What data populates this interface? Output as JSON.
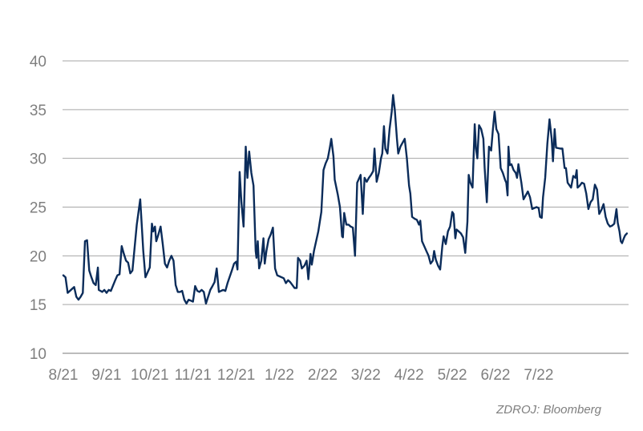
{
  "source": "ZDROJ: Bloomberg",
  "chart_data": {
    "type": "line",
    "title": "",
    "xlabel": "",
    "ylabel": "",
    "ylim": [
      10,
      40
    ],
    "yticks": [
      10,
      15,
      20,
      25,
      30,
      35,
      40
    ],
    "xtick_labels": [
      "8/21",
      "9/21",
      "10/21",
      "11/21",
      "12/21",
      "1/22",
      "2/22",
      "3/22",
      "4/22",
      "5/22",
      "6/22",
      "7/22"
    ],
    "grid": true,
    "legend": "none",
    "line_color": "#0b2c5a",
    "x_unit": "month index (0 = 8/21)",
    "series": [
      {
        "values": [
          [
            0.0,
            18.0
          ],
          [
            0.05,
            17.8
          ],
          [
            0.1,
            16.2
          ],
          [
            0.2,
            16.6
          ],
          [
            0.25,
            16.8
          ],
          [
            0.3,
            15.8
          ],
          [
            0.35,
            15.5
          ],
          [
            0.4,
            15.8
          ],
          [
            0.45,
            16.2
          ],
          [
            0.5,
            21.5
          ],
          [
            0.55,
            21.6
          ],
          [
            0.6,
            18.5
          ],
          [
            0.65,
            17.8
          ],
          [
            0.7,
            17.2
          ],
          [
            0.75,
            17.0
          ],
          [
            0.8,
            18.8
          ],
          [
            0.82,
            16.5
          ],
          [
            0.9,
            16.3
          ],
          [
            0.95,
            16.5
          ],
          [
            1.0,
            16.2
          ],
          [
            1.05,
            16.5
          ],
          [
            1.1,
            16.4
          ],
          [
            1.2,
            17.5
          ],
          [
            1.25,
            18.0
          ],
          [
            1.3,
            18.1
          ],
          [
            1.35,
            21.0
          ],
          [
            1.4,
            20.2
          ],
          [
            1.45,
            19.5
          ],
          [
            1.5,
            19.3
          ],
          [
            1.55,
            18.2
          ],
          [
            1.6,
            18.5
          ],
          [
            1.7,
            23.2
          ],
          [
            1.78,
            25.8
          ],
          [
            1.85,
            20.5
          ],
          [
            1.9,
            17.8
          ],
          [
            2.0,
            18.8
          ],
          [
            2.05,
            23.3
          ],
          [
            2.08,
            22.5
          ],
          [
            2.12,
            23.0
          ],
          [
            2.15,
            21.5
          ],
          [
            2.2,
            22.2
          ],
          [
            2.25,
            23.0
          ],
          [
            2.3,
            21.2
          ],
          [
            2.35,
            19.2
          ],
          [
            2.4,
            18.8
          ],
          [
            2.45,
            19.5
          ],
          [
            2.5,
            20.0
          ],
          [
            2.55,
            19.5
          ],
          [
            2.6,
            17.0
          ],
          [
            2.65,
            16.3
          ],
          [
            2.7,
            16.3
          ],
          [
            2.75,
            16.4
          ],
          [
            2.8,
            15.5
          ],
          [
            2.85,
            15.1
          ],
          [
            2.9,
            15.5
          ],
          [
            2.95,
            15.4
          ],
          [
            3.0,
            15.3
          ],
          [
            3.05,
            16.9
          ],
          [
            3.1,
            16.4
          ],
          [
            3.15,
            16.3
          ],
          [
            3.2,
            16.5
          ],
          [
            3.25,
            16.3
          ],
          [
            3.3,
            15.1
          ],
          [
            3.35,
            15.8
          ],
          [
            3.4,
            16.5
          ],
          [
            3.45,
            16.9
          ],
          [
            3.5,
            17.3
          ],
          [
            3.55,
            18.7
          ],
          [
            3.6,
            16.3
          ],
          [
            3.65,
            16.4
          ],
          [
            3.7,
            16.5
          ],
          [
            3.75,
            16.4
          ],
          [
            3.8,
            17.2
          ],
          [
            3.9,
            18.5
          ],
          [
            3.95,
            19.2
          ],
          [
            4.0,
            19.4
          ],
          [
            4.03,
            18.6
          ],
          [
            4.08,
            28.6
          ],
          [
            4.12,
            25.5
          ],
          [
            4.17,
            23.0
          ],
          [
            4.22,
            31.2
          ],
          [
            4.26,
            28.0
          ],
          [
            4.3,
            30.7
          ],
          [
            4.35,
            28.5
          ],
          [
            4.4,
            27.2
          ],
          [
            4.45,
            20.5
          ],
          [
            4.47,
            19.8
          ],
          [
            4.5,
            21.5
          ],
          [
            4.53,
            18.7
          ],
          [
            4.58,
            19.5
          ],
          [
            4.63,
            21.8
          ],
          [
            4.66,
            19.2
          ],
          [
            4.7,
            20.5
          ],
          [
            4.75,
            21.7
          ],
          [
            4.8,
            22.2
          ],
          [
            4.85,
            22.9
          ],
          [
            4.9,
            18.7
          ],
          [
            4.95,
            18.0
          ],
          [
            5.0,
            17.9
          ],
          [
            5.1,
            17.7
          ],
          [
            5.15,
            17.2
          ],
          [
            5.2,
            17.5
          ],
          [
            5.25,
            17.3
          ],
          [
            5.3,
            17.0
          ],
          [
            5.35,
            16.7
          ],
          [
            5.4,
            16.7
          ],
          [
            5.43,
            19.8
          ],
          [
            5.48,
            19.5
          ],
          [
            5.52,
            18.7
          ],
          [
            5.58,
            19.0
          ],
          [
            5.63,
            19.5
          ],
          [
            5.67,
            17.6
          ],
          [
            5.72,
            20.2
          ],
          [
            5.75,
            19.1
          ],
          [
            5.8,
            20.5
          ],
          [
            5.9,
            22.5
          ],
          [
            5.97,
            24.5
          ],
          [
            6.02,
            28.8
          ],
          [
            6.07,
            29.5
          ],
          [
            6.12,
            30.0
          ],
          [
            6.17,
            31.2
          ],
          [
            6.2,
            32.0
          ],
          [
            6.25,
            30.2
          ],
          [
            6.28,
            27.8
          ],
          [
            6.35,
            26.3
          ],
          [
            6.4,
            25.0
          ],
          [
            6.45,
            22.0
          ],
          [
            6.47,
            21.9
          ],
          [
            6.5,
            24.4
          ],
          [
            6.55,
            23.2
          ],
          [
            6.6,
            23.2
          ],
          [
            6.65,
            23.0
          ],
          [
            6.7,
            22.9
          ],
          [
            6.75,
            20.0
          ],
          [
            6.8,
            27.5
          ],
          [
            6.88,
            28.3
          ],
          [
            6.93,
            24.3
          ],
          [
            6.97,
            28.0
          ],
          [
            7.02,
            27.6
          ],
          [
            7.07,
            28.0
          ],
          [
            7.12,
            28.3
          ],
          [
            7.17,
            28.7
          ],
          [
            7.2,
            31.0
          ],
          [
            7.25,
            27.6
          ],
          [
            7.3,
            28.5
          ],
          [
            7.35,
            30.0
          ],
          [
            7.38,
            30.5
          ],
          [
            7.42,
            33.3
          ],
          [
            7.45,
            31.0
          ],
          [
            7.5,
            30.5
          ],
          [
            7.55,
            33.0
          ],
          [
            7.6,
            34.8
          ],
          [
            7.63,
            36.5
          ],
          [
            7.67,
            35.0
          ],
          [
            7.72,
            32.0
          ],
          [
            7.75,
            30.5
          ],
          [
            7.8,
            31.2
          ],
          [
            7.85,
            31.6
          ],
          [
            7.9,
            32.0
          ],
          [
            7.95,
            30.0
          ],
          [
            8.0,
            27.2
          ],
          [
            8.03,
            26.4
          ],
          [
            8.07,
            24.0
          ],
          [
            8.13,
            23.8
          ],
          [
            8.18,
            23.7
          ],
          [
            8.23,
            23.2
          ],
          [
            8.26,
            23.6
          ],
          [
            8.3,
            21.5
          ],
          [
            8.35,
            21.0
          ],
          [
            8.4,
            20.5
          ],
          [
            8.45,
            20.0
          ],
          [
            8.5,
            19.2
          ],
          [
            8.55,
            19.5
          ],
          [
            8.58,
            20.5
          ],
          [
            8.62,
            19.6
          ],
          [
            8.67,
            19.0
          ],
          [
            8.72,
            18.6
          ],
          [
            8.77,
            21.0
          ],
          [
            8.8,
            22.0
          ],
          [
            8.85,
            21.2
          ],
          [
            8.9,
            22.5
          ],
          [
            8.95,
            23.0
          ],
          [
            9.0,
            24.5
          ],
          [
            9.03,
            24.3
          ],
          [
            9.07,
            21.8
          ],
          [
            9.1,
            22.7
          ],
          [
            9.15,
            22.5
          ],
          [
            9.2,
            22.3
          ],
          [
            9.25,
            21.9
          ],
          [
            9.3,
            20.3
          ],
          [
            9.35,
            23.5
          ],
          [
            9.38,
            28.3
          ],
          [
            9.42,
            27.5
          ],
          [
            9.47,
            27.0
          ],
          [
            9.52,
            33.5
          ],
          [
            9.55,
            31.0
          ],
          [
            9.58,
            30.0
          ],
          [
            9.62,
            33.4
          ],
          [
            9.67,
            33.0
          ],
          [
            9.72,
            32.0
          ],
          [
            9.75,
            29.0
          ],
          [
            9.8,
            25.5
          ],
          [
            9.85,
            31.2
          ],
          [
            9.9,
            30.8
          ],
          [
            9.94,
            33.0
          ],
          [
            9.98,
            34.8
          ],
          [
            10.02,
            33.0
          ],
          [
            10.07,
            32.5
          ],
          [
            10.12,
            29.0
          ],
          [
            10.17,
            28.5
          ],
          [
            10.22,
            27.8
          ],
          [
            10.25,
            27.5
          ],
          [
            10.28,
            26.2
          ],
          [
            10.3,
            31.2
          ],
          [
            10.33,
            29.3
          ],
          [
            10.37,
            29.4
          ],
          [
            10.42,
            28.8
          ],
          [
            10.47,
            28.5
          ],
          [
            10.5,
            28.0
          ],
          [
            10.53,
            29.4
          ],
          [
            10.57,
            28.3
          ],
          [
            10.6,
            27.5
          ],
          [
            10.65,
            25.8
          ],
          [
            10.7,
            26.2
          ],
          [
            10.75,
            26.6
          ],
          [
            10.8,
            26.0
          ],
          [
            10.85,
            24.8
          ],
          [
            10.9,
            24.9
          ],
          [
            10.95,
            25.0
          ],
          [
            11.0,
            24.9
          ],
          [
            11.03,
            24.0
          ],
          [
            11.07,
            23.9
          ],
          [
            11.1,
            26.0
          ],
          [
            11.15,
            28.0
          ],
          [
            11.2,
            31.5
          ],
          [
            11.25,
            34.0
          ],
          [
            11.3,
            32.0
          ],
          [
            11.33,
            29.7
          ],
          [
            11.37,
            33.0
          ],
          [
            11.4,
            31.1
          ],
          [
            11.5,
            31.0
          ],
          [
            11.55,
            31.0
          ],
          [
            11.6,
            29.0
          ],
          [
            11.63,
            29.0
          ],
          [
            11.67,
            27.5
          ],
          [
            11.75,
            27.0
          ],
          [
            11.8,
            28.2
          ],
          [
            11.85,
            28.0
          ],
          [
            11.88,
            28.8
          ],
          [
            11.9,
            27.0
          ],
          [
            11.95,
            27.2
          ],
          [
            12.0,
            27.5
          ],
          [
            12.05,
            27.4
          ],
          [
            12.1,
            26.4
          ],
          [
            12.15,
            24.8
          ],
          [
            12.2,
            25.5
          ],
          [
            12.25,
            25.8
          ],
          [
            12.3,
            27.3
          ],
          [
            12.35,
            26.8
          ],
          [
            12.4,
            24.3
          ],
          [
            12.45,
            24.7
          ],
          [
            12.5,
            25.3
          ],
          [
            12.55,
            24.0
          ],
          [
            12.6,
            23.3
          ],
          [
            12.65,
            23.0
          ],
          [
            12.7,
            23.1
          ],
          [
            12.75,
            23.3
          ],
          [
            12.8,
            24.8
          ],
          [
            12.83,
            23.4
          ],
          [
            12.87,
            22.5
          ],
          [
            12.9,
            21.5
          ],
          [
            12.93,
            21.3
          ],
          [
            12.97,
            21.8
          ],
          [
            13.0,
            22.1
          ],
          [
            13.04,
            22.3
          ]
        ]
      }
    ]
  }
}
